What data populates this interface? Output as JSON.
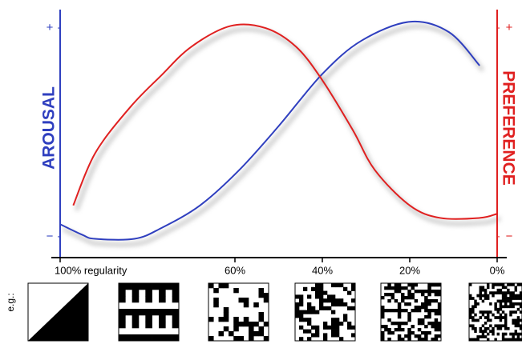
{
  "chart_data": {
    "type": "line",
    "y_label": "AROUSAL",
    "y2_label": "PREFERENCE",
    "example_label": "e.g.:",
    "xlim": [
      100,
      0
    ],
    "xticks": [
      {
        "value": 100,
        "label": "100% regularity"
      },
      {
        "value": 60,
        "label": "60%"
      },
      {
        "value": 40,
        "label": "40%"
      },
      {
        "value": 20,
        "label": "20%"
      },
      {
        "value": 0,
        "label": "0%"
      }
    ],
    "ylim": [
      -10,
      105
    ],
    "yticks": [
      {
        "value": 100,
        "label": "+"
      },
      {
        "value": 0,
        "label": "−"
      }
    ],
    "y2lim": [
      -10,
      105
    ],
    "y2ticks": [
      {
        "value": 100,
        "label": "+"
      },
      {
        "value": 0,
        "label": "−"
      }
    ],
    "series": [
      {
        "name": "AROUSAL",
        "color": "#2f3fbf",
        "x": [
          100,
          95,
          92,
          83,
          77,
          68,
          59,
          50,
          40,
          31,
          20,
          11,
          4
        ],
        "values": [
          6,
          1,
          -1,
          -1,
          4,
          15,
          32,
          53,
          78,
          94,
          103,
          98,
          82
        ]
      },
      {
        "name": "PREFERENCE",
        "color": "#e02020",
        "axis": "y2",
        "x": [
          97,
          92,
          84,
          77,
          70,
          61,
          53,
          46,
          40,
          33,
          28,
          20,
          13,
          4,
          0
        ],
        "values": [
          15,
          40,
          62,
          77,
          91,
          101,
          100,
          91,
          75,
          51,
          32,
          15,
          9,
          9,
          11
        ]
      }
    ]
  }
}
